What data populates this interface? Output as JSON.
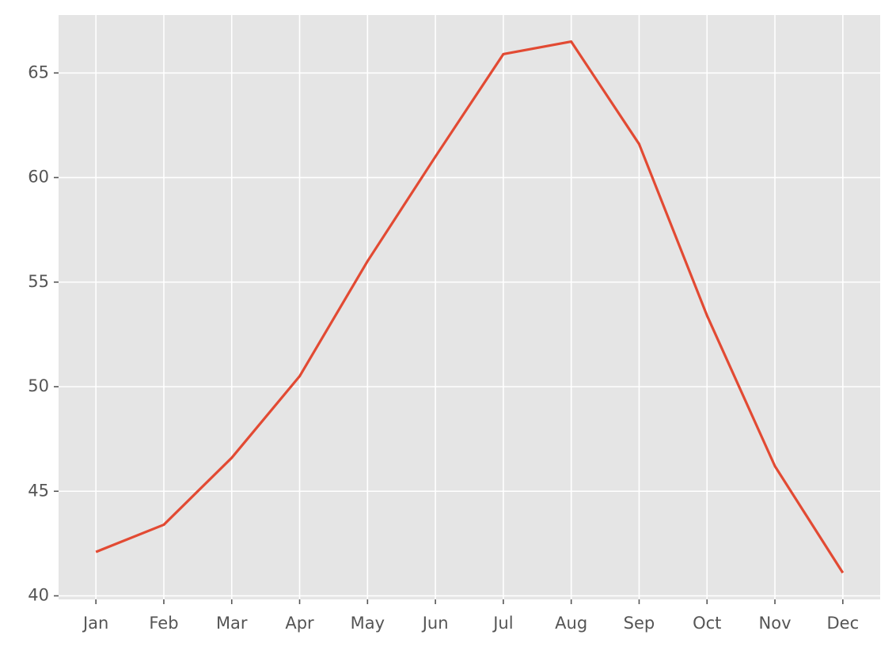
{
  "chart_data": {
    "type": "line",
    "categories": [
      "Jan",
      "Feb",
      "Mar",
      "Apr",
      "May",
      "Jun",
      "Jul",
      "Aug",
      "Sep",
      "Oct",
      "Nov",
      "Dec"
    ],
    "values": [
      42.1,
      43.4,
      46.6,
      50.5,
      56.0,
      61.0,
      65.9,
      66.5,
      61.6,
      53.4,
      46.2,
      41.1
    ],
    "color": "#e24a33",
    "ylim": [
      39.83,
      67.77
    ],
    "yticks": [
      40,
      45,
      50,
      55,
      60,
      65
    ],
    "grid": true
  }
}
